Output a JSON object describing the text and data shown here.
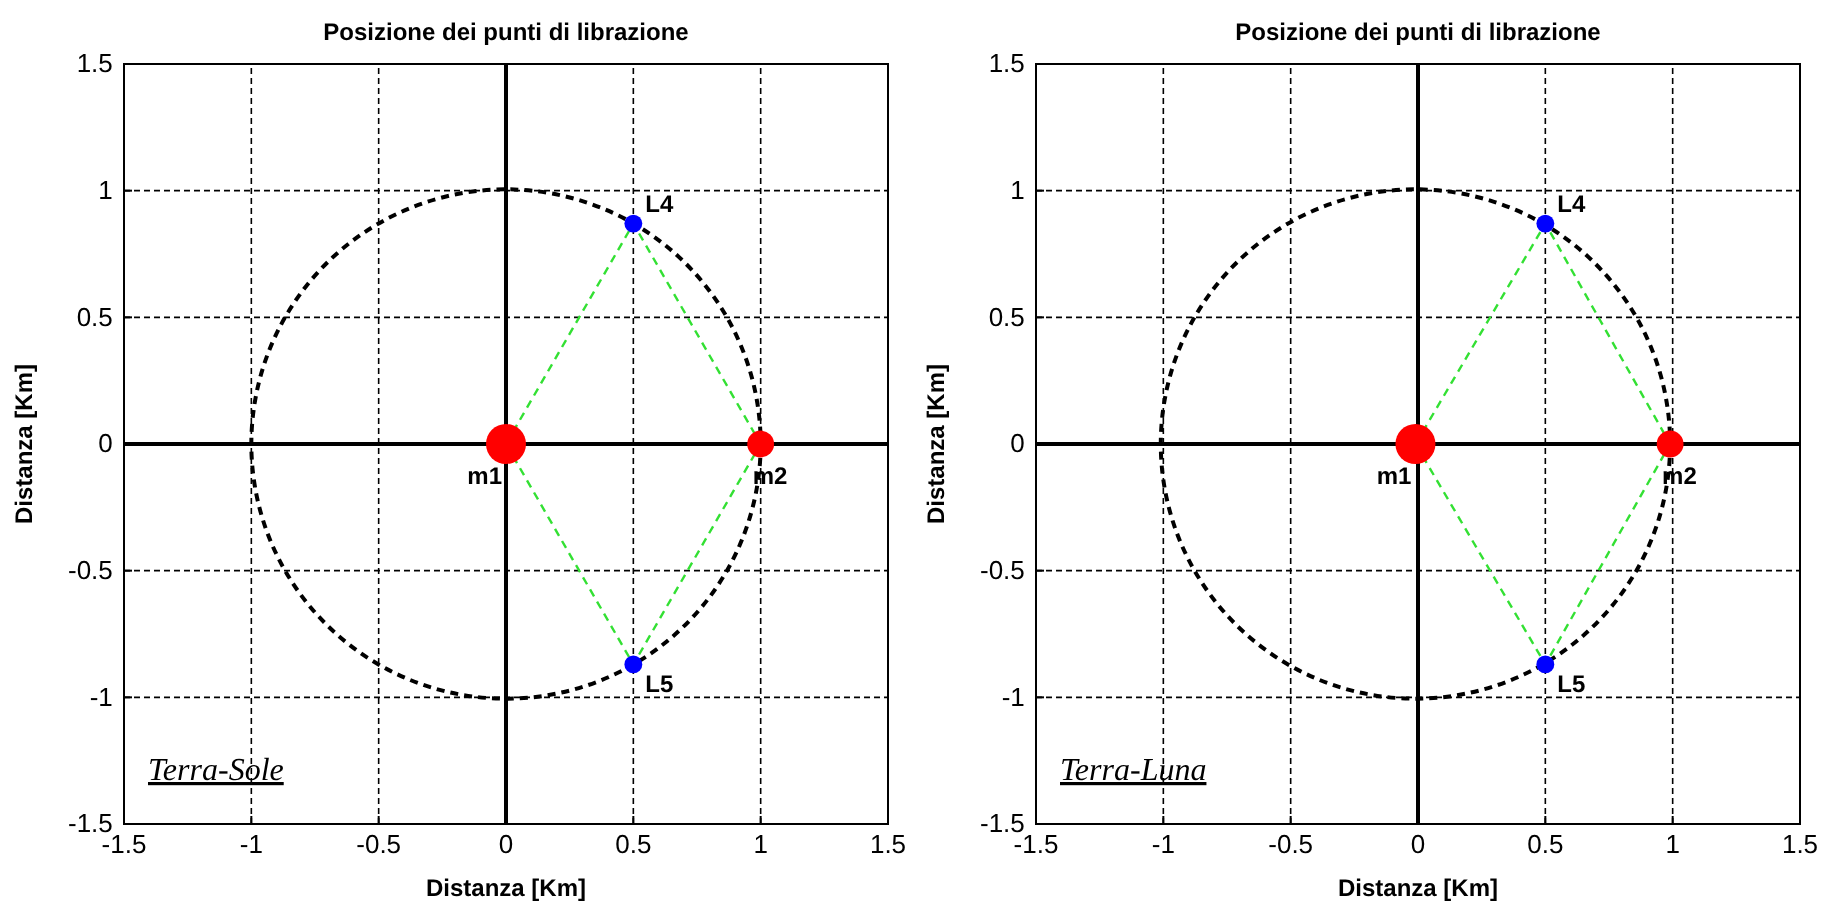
{
  "chart_data": [
    {
      "type": "line",
      "title": "Posizione dei punti di librazione",
      "xlabel": "Distanza [Km]",
      "ylabel": "Distanza [Km]",
      "xlim": [
        -1.5,
        1.5
      ],
      "ylim": [
        -1.5,
        1.5
      ],
      "xticks": [
        -1.5,
        -1,
        -0.5,
        0,
        0.5,
        1,
        1.5
      ],
      "yticks": [
        -1.5,
        -1,
        -0.5,
        0,
        0.5,
        1,
        1.5
      ],
      "grid": true,
      "series": [
        {
          "type": "line",
          "color": "#33e033",
          "line_style": "dashed",
          "x": [
            0,
            0.5,
            1
          ],
          "values": [
            0,
            0.87,
            0
          ]
        },
        {
          "type": "line",
          "color": "#33e033",
          "line_style": "dashed",
          "x": [
            0,
            0.5,
            1
          ],
          "values": [
            0,
            -0.87,
            0
          ]
        },
        {
          "type": "bubble",
          "x": [
            0,
            1,
            0.5,
            0.5
          ],
          "values": [
            0,
            0,
            0.87,
            -0.87
          ],
          "sizes": [
            1,
            0.45,
            0.2,
            0.2
          ],
          "colors": [
            "#ff0000",
            "#ff0000",
            "#0000ff",
            "#0000ff"
          ]
        }
      ],
      "annotations": [
        {
          "text": "L4",
          "x": 0.5,
          "y": 0.87
        },
        {
          "text": "L5",
          "x": 0.5,
          "y": -0.87
        },
        {
          "text": "m1",
          "x": 0,
          "y": 0
        },
        {
          "text": "m2",
          "x": 1,
          "y": 0
        },
        "Terra-Sole"
      ]
    },
    {
      "type": "line",
      "title": "Posizione dei punti di librazione",
      "xlabel": "Distanza [Km]",
      "ylabel": "Distanza [Km]",
      "xlim": [
        -1.5,
        1.5
      ],
      "ylim": [
        -1.5,
        1.5
      ],
      "xticks": [
        -1.5,
        -1,
        -0.5,
        0,
        0.5,
        1,
        1.5
      ],
      "yticks": [
        -1.5,
        -1,
        -0.5,
        0,
        0.5,
        1,
        1.5
      ],
      "grid": true,
      "series": [
        {
          "type": "line",
          "color": "#33e033",
          "line_style": "dashed",
          "x": [
            -0.01,
            0.5,
            0.99
          ],
          "values": [
            0,
            0.87,
            0
          ]
        },
        {
          "type": "line",
          "color": "#33e033",
          "line_style": "dashed",
          "x": [
            -0.01,
            0.5,
            0.99
          ],
          "values": [
            0,
            -0.87,
            0
          ]
        },
        {
          "type": "bubble",
          "x": [
            -0.01,
            0.99,
            0.5,
            0.5
          ],
          "values": [
            0,
            0,
            0.87,
            -0.87
          ],
          "sizes": [
            1,
            0.45,
            0.2,
            0.2
          ],
          "colors": [
            "#ff0000",
            "#ff0000",
            "#0000ff",
            "#0000ff"
          ]
        }
      ],
      "annotations": [
        {
          "text": "L4",
          "x": 0.5,
          "y": 0.87
        },
        {
          "text": "L5",
          "x": 0.5,
          "y": -0.87
        },
        {
          "text": "m1",
          "x": -0.01,
          "y": 0
        },
        {
          "text": "m2",
          "x": 0.99,
          "y": 0
        },
        "Terra-Luna"
      ]
    }
  ]
}
